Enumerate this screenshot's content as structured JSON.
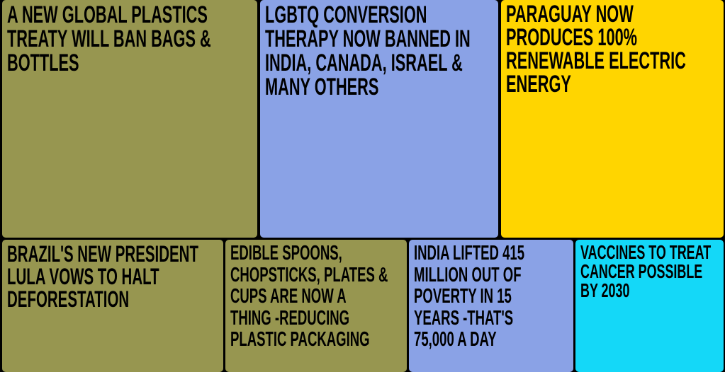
{
  "tiles": [
    {
      "lines": [
        "A NEW GLOBAL PLASTICS",
        "TREATY WILL BAN BAGS &",
        "BOTTLES"
      ]
    },
    {
      "lines": [
        "LGBTQ CONVERSION",
        "THERAPY NOW BANNED IN",
        "INDIA, CANADA, ISRAEL &",
        "MANY OTHERS"
      ]
    },
    {
      "lines": [
        "PARAGUAY NOW",
        "PRODUCES 100%",
        "RENEWABLE ELECTRIC",
        "ENERGY"
      ]
    },
    {
      "lines": [
        "BRAZIL'S NEW PRESIDENT",
        "LULA VOWS TO HALT",
        "DEFORESTATION"
      ]
    },
    {
      "lines": [
        "EDIBLE SPOONS,",
        "CHOPSTICKS, PLATES &",
        "CUPS ARE NOW A",
        "THING -REDUCING",
        "PLASTIC PACKAGING"
      ]
    },
    {
      "lines": [
        "INDIA LIFTED 415",
        "MILLION OUT OF",
        "POVERTY IN 15",
        "YEARS -THAT'S",
        "75,000 A DAY"
      ]
    },
    {
      "lines": [
        "VACCINES TO TREAT",
        "CANCER POSSIBLE",
        "BY 2030"
      ]
    }
  ]
}
